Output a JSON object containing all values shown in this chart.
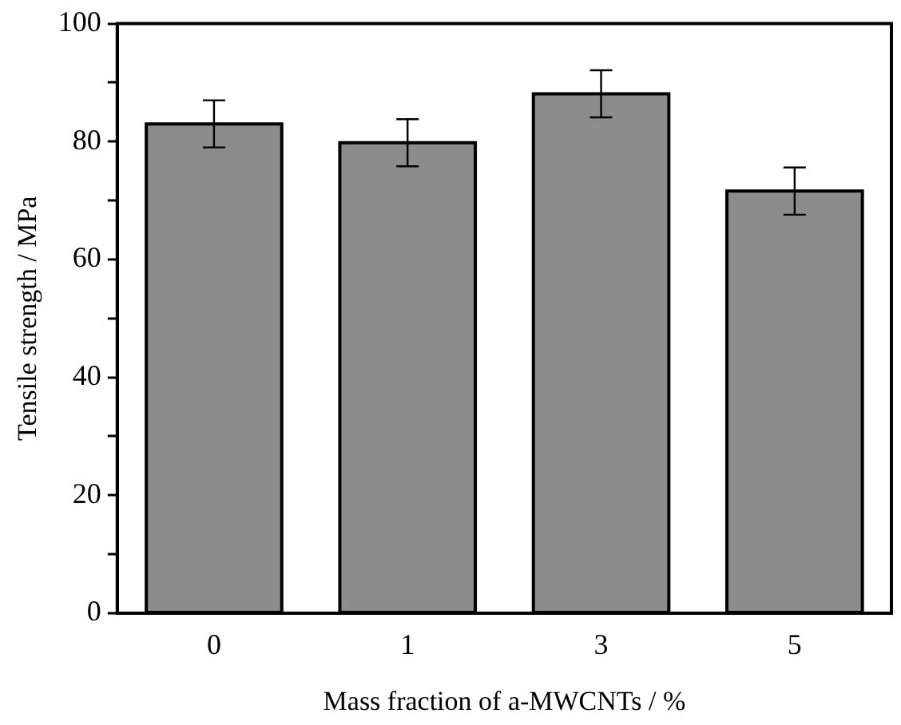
{
  "chart_data": {
    "type": "bar",
    "xlabel": "Mass fraction of a-MWCNTs / %",
    "ylabel": "Tensile strength / MPa",
    "categories": [
      "0",
      "1",
      "3",
      "5"
    ],
    "values": [
      83,
      79.8,
      88.1,
      71.6
    ],
    "errors": [
      4,
      4,
      4,
      4
    ],
    "color": "#8c8c8c",
    "ylim": [
      0,
      100
    ],
    "yticks": [
      0,
      {
        "value": 10,
        "label": null
      },
      20,
      {
        "value": 30,
        "label": null
      },
      40,
      {
        "value": 50,
        "label": null
      },
      60,
      {
        "value": 70,
        "label": null
      },
      80,
      {
        "value": 90,
        "label": null
      },
      100
    ],
    "grid": false,
    "legend": false
  }
}
